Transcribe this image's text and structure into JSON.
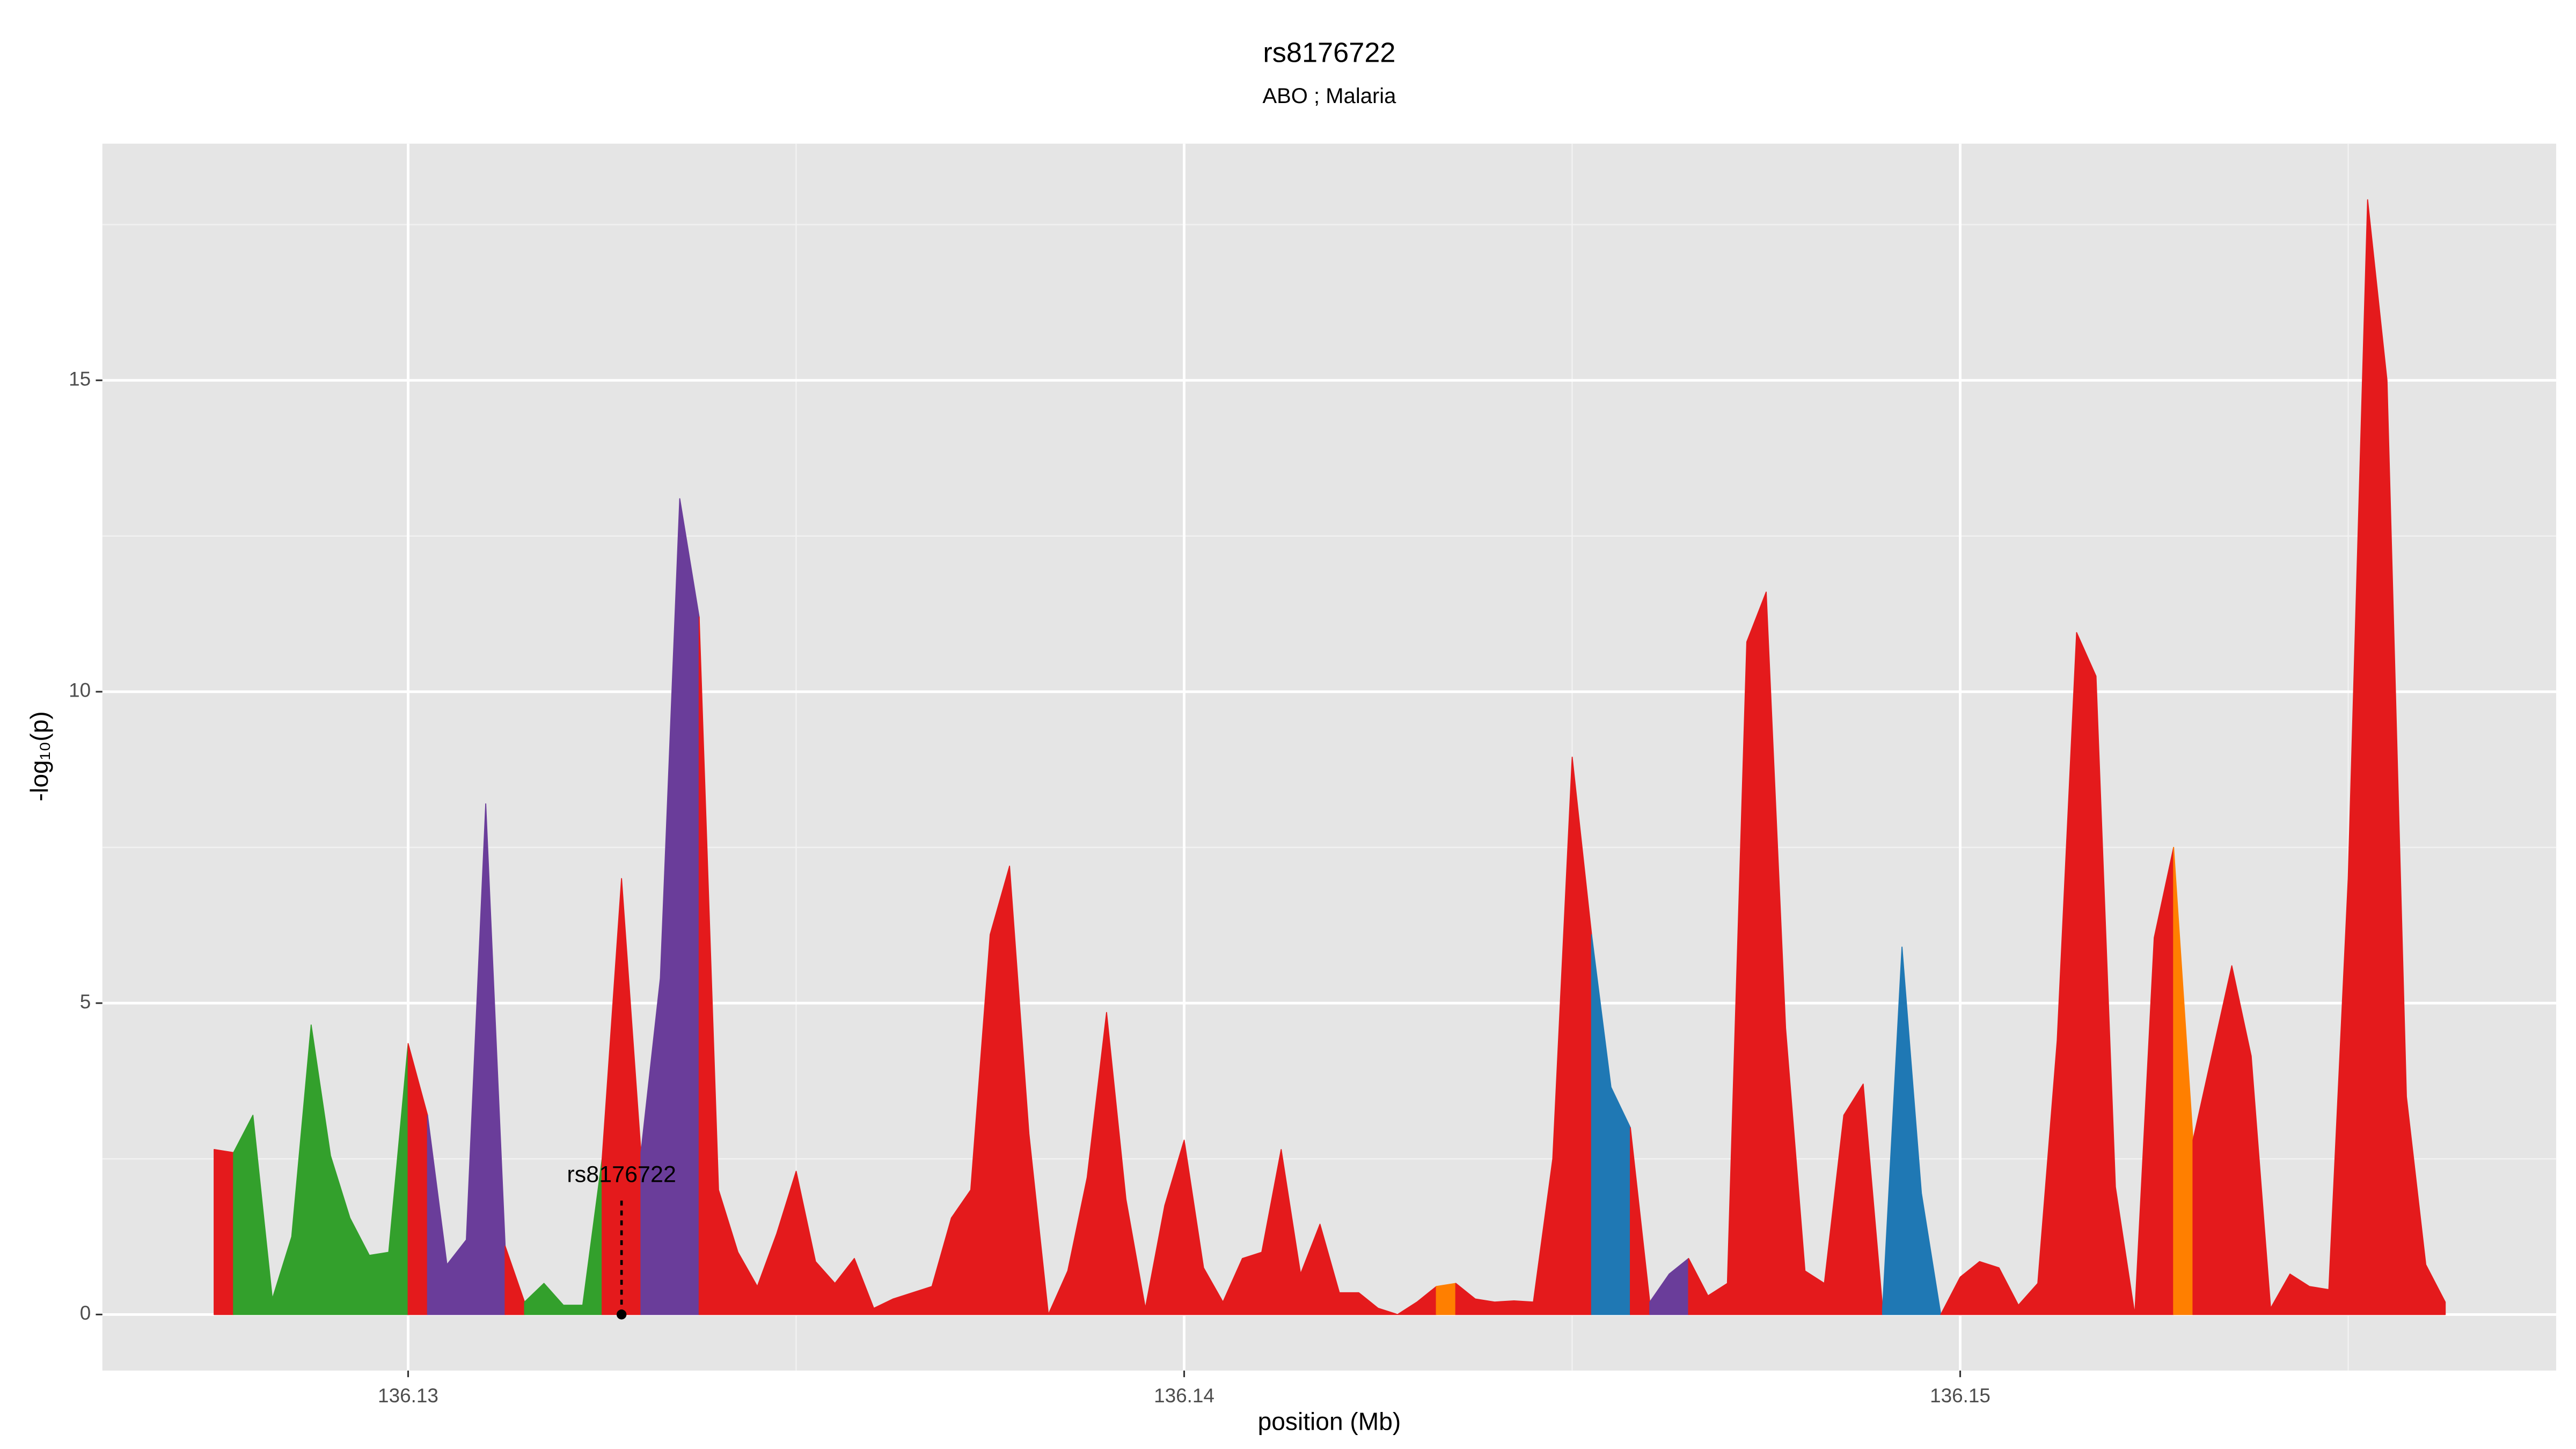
{
  "chart_data": {
    "type": "area",
    "title": "rs8176722",
    "subtitle": "ABO ; Malaria",
    "x_label": "position (Mb)",
    "y_label": "-log₁₀(p)",
    "xlim": [
      136.12606,
      136.15768
    ],
    "ylim": [
      -0.9,
      18.8
    ],
    "xticks": [
      136.13,
      136.14,
      136.15
    ],
    "yticks": [
      0,
      5,
      10,
      15
    ],
    "grid": true,
    "annotation": {
      "text": "rs8176722",
      "x": 136.13275,
      "y": 0
    },
    "series": [
      {
        "color": "#e41a1c",
        "x": [
          136.1275,
          136.12775
        ],
        "values": [
          2.65,
          2.6
        ]
      },
      {
        "color": "#33a02c",
        "x": [
          136.12775,
          136.128,
          136.12825,
          136.1285,
          136.12875,
          136.129,
          136.12925,
          136.1295,
          136.12975,
          136.13
        ],
        "values": [
          2.6,
          3.2,
          0.25,
          1.25,
          4.65,
          2.55,
          1.55,
          0.95,
          1.0,
          4.35
        ]
      },
      {
        "color": "#e41a1c",
        "x": [
          136.13,
          136.13025
        ],
        "values": [
          4.35,
          3.2
        ]
      },
      {
        "color": "#6a3d9a",
        "x": [
          136.13025,
          136.1305,
          136.13075,
          136.131,
          136.13125
        ],
        "values": [
          3.2,
          0.8,
          1.2,
          8.2,
          1.1
        ]
      },
      {
        "color": "#e41a1c",
        "x": [
          136.13125,
          136.1315
        ],
        "values": [
          1.1,
          0.2
        ]
      },
      {
        "color": "#33a02c",
        "x": [
          136.1315,
          136.13175,
          136.132,
          136.13225,
          136.1325
        ],
        "values": [
          0.2,
          0.5,
          0.15,
          0.15,
          2.5
        ]
      },
      {
        "color": "#e41a1c",
        "x": [
          136.1325,
          136.13275,
          136.133
        ],
        "values": [
          2.5,
          7.0,
          2.6
        ]
      },
      {
        "color": "#6a3d9a",
        "x": [
          136.133,
          136.13325,
          136.1335,
          136.13375
        ],
        "values": [
          2.6,
          5.4,
          13.1,
          11.2
        ]
      },
      {
        "color": "#e41a1c",
        "x": [
          136.13375,
          136.134,
          136.13425,
          136.1345,
          136.13475,
          136.135,
          136.13525,
          136.1355,
          136.13575,
          136.136,
          136.13625,
          136.1365,
          136.13675,
          136.137,
          136.13725,
          136.1375,
          136.13775,
          136.138,
          136.13825,
          136.1385,
          136.13875,
          136.139,
          136.13925,
          136.1395,
          136.13975,
          136.14,
          136.14025,
          136.1405,
          136.14075,
          136.141,
          136.14125,
          136.1415,
          136.14175,
          136.142,
          136.14225,
          136.1425,
          136.14275,
          136.143,
          136.14325
        ],
        "values": [
          11.2,
          2.0,
          1.0,
          0.45,
          1.3,
          2.3,
          0.85,
          0.5,
          0.9,
          0.1,
          0.25,
          0.35,
          0.45,
          1.55,
          2.0,
          6.1,
          7.2,
          2.9,
          0,
          0.7,
          2.2,
          4.85,
          1.85,
          0.1,
          1.75,
          2.8,
          0.75,
          0.2,
          0.9,
          1.0,
          2.65,
          0.65,
          1.45,
          0.35,
          0.35,
          0.1,
          0,
          0.2,
          0.45
        ]
      },
      {
        "color": "#ff7f00",
        "x": [
          136.14325,
          136.1435
        ],
        "values": [
          0.45,
          0.5
        ]
      },
      {
        "color": "#e41a1c",
        "x": [
          136.1435,
          136.14375,
          136.144,
          136.14425,
          136.1445,
          136.14475,
          136.145,
          136.14525
        ],
        "values": [
          0.5,
          0.25,
          0.2,
          0.22,
          0.2,
          2.5,
          8.95,
          6.1
        ]
      },
      {
        "color": "#1f78b4",
        "x": [
          136.14525,
          136.1455,
          136.14575
        ],
        "values": [
          6.1,
          3.65,
          3.0
        ]
      },
      {
        "color": "#e41a1c",
        "x": [
          136.14575,
          136.146
        ],
        "values": [
          3.0,
          0.2
        ]
      },
      {
        "color": "#6a3d9a",
        "x": [
          136.146,
          136.14625,
          136.1465
        ],
        "values": [
          0.2,
          0.65,
          0.9
        ]
      },
      {
        "color": "#e41a1c",
        "x": [
          136.1465,
          136.14675,
          136.147,
          136.14725,
          136.1475,
          136.14775,
          136.148,
          136.14825,
          136.1485,
          136.14875,
          136.149
        ],
        "values": [
          0.9,
          0.3,
          0.5,
          10.8,
          11.6,
          4.6,
          0.7,
          0.5,
          3.2,
          3.7,
          0.1
        ]
      },
      {
        "color": "#1f78b4",
        "x": [
          136.149,
          136.14925,
          136.1495,
          136.14975
        ],
        "values": [
          0.1,
          5.9,
          1.95,
          0
        ]
      },
      {
        "color": "#e41a1c",
        "x": [
          136.14975,
          136.15,
          136.15025,
          136.1505,
          136.15075,
          136.151,
          136.15125,
          136.1515,
          136.15175,
          136.152,
          136.15225,
          136.1525,
          136.15275
        ],
        "values": [
          0,
          0.6,
          0.85,
          0.75,
          0.15,
          0.5,
          4.4,
          10.95,
          10.25,
          2.05,
          0,
          6.05,
          7.5
        ]
      },
      {
        "color": "#ff7f00",
        "x": [
          136.15275,
          136.153
        ],
        "values": [
          7.5,
          2.8
        ]
      },
      {
        "color": "#e41a1c",
        "x": [
          136.153,
          136.15325,
          136.1535,
          136.15375,
          136.154,
          136.15425,
          136.1545,
          136.15475,
          136.155,
          136.15525,
          136.1555,
          136.15575,
          136.156,
          136.15625
        ],
        "values": [
          2.8,
          4.2,
          5.6,
          4.15,
          0.1,
          0.65,
          0.45,
          0.4,
          7.0,
          17.9,
          15.0,
          3.5,
          0.8,
          0.2
        ]
      }
    ]
  }
}
